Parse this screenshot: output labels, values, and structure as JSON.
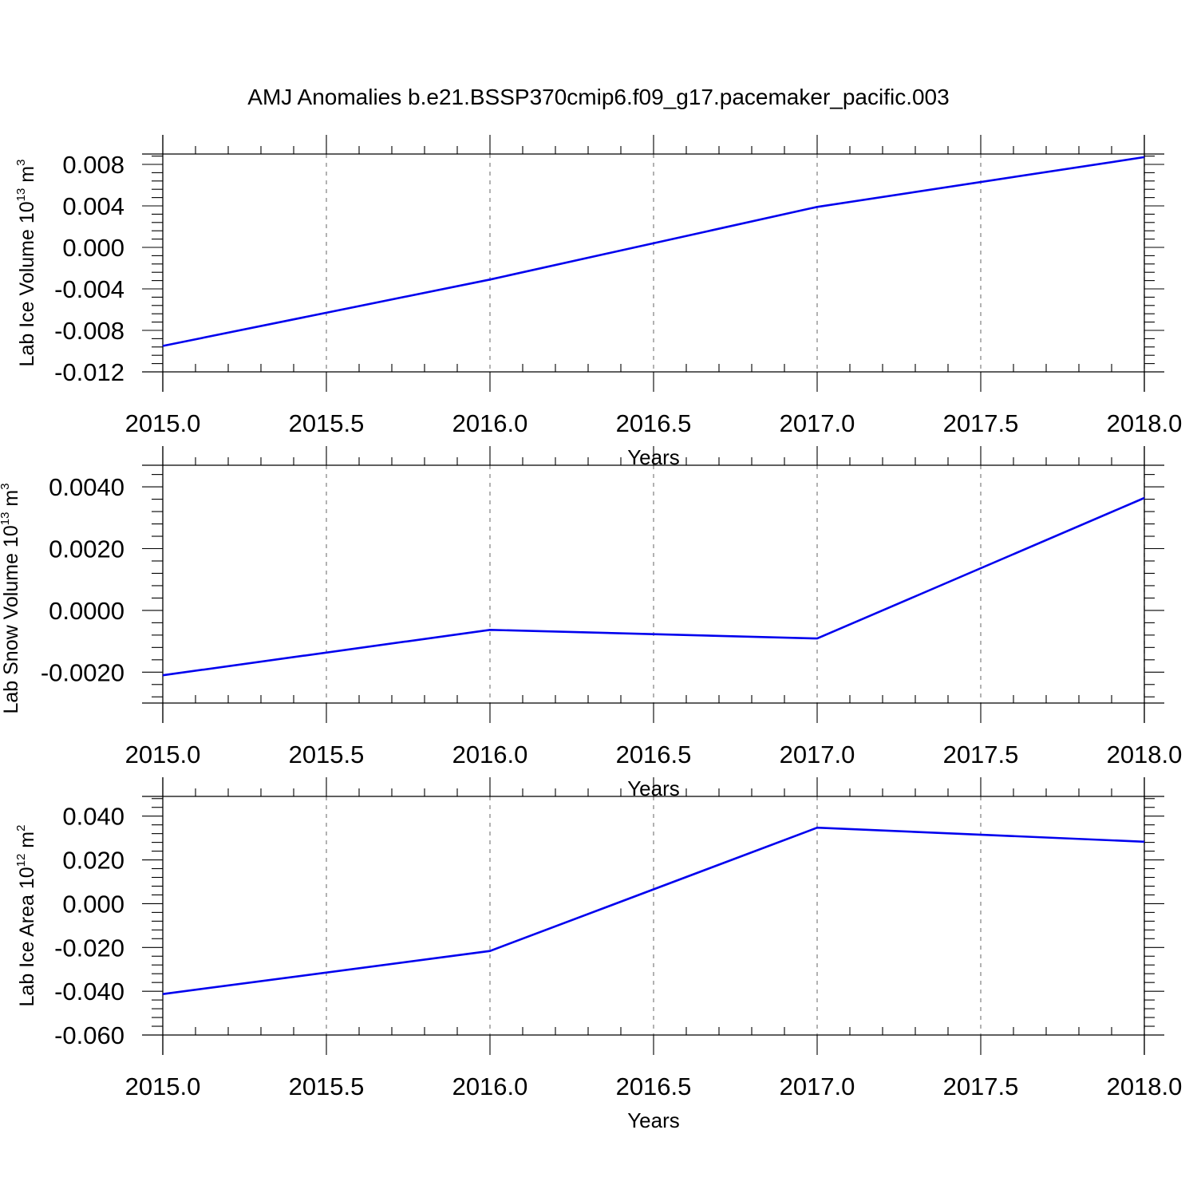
{
  "title": "AMJ Anomalies b.e21.BSSP370cmip6.f09_g17.pacemaker_pacific.003",
  "colors": {
    "series": "#0000ee",
    "grid": "#888888",
    "axis": "#000000"
  },
  "chart_data": [
    {
      "type": "line",
      "ylabel": {
        "main": "Lab Ice Volume 10",
        "sup": "13",
        "unit": " m",
        "unit_sup": "3"
      },
      "xlabel": "Years",
      "xlim": [
        2015.0,
        2018.0
      ],
      "ylim": [
        -0.012,
        0.009
      ],
      "x_ticks": [
        "2015.0",
        "2015.5",
        "2016.0",
        "2016.5",
        "2017.0",
        "2017.5",
        "2018.0"
      ],
      "y_ticks": [
        "0.008",
        "0.004",
        "0.000",
        "-0.004",
        "-0.008",
        "-0.012"
      ],
      "grid": "vertical dashed",
      "series": [
        {
          "x": [
            2015,
            2016,
            2017,
            2018
          ],
          "values": [
            -0.0095,
            -0.0031,
            0.0039,
            0.0087
          ]
        }
      ]
    },
    {
      "type": "line",
      "ylabel": {
        "main": "Lab Snow Volume 10",
        "sup": "13",
        "unit": " m",
        "unit_sup": "3"
      },
      "xlabel": "Years",
      "xlim": [
        2015.0,
        2018.0
      ],
      "ylim": [
        -0.003,
        0.004
      ],
      "x_ticks": [
        "2015.0",
        "2015.5",
        "2016.0",
        "2016.5",
        "2017.0",
        "2017.5",
        "2018.0"
      ],
      "y_ticks": [
        "0.0040",
        "0.0020",
        "0.0000",
        "-0.0020"
      ],
      "grid": "vertical dashed",
      "series": [
        {
          "x": [
            2015,
            2016,
            2017,
            2018
          ],
          "values": [
            -0.0021,
            -0.00063,
            -0.00091,
            0.00364
          ]
        }
      ]
    },
    {
      "type": "line",
      "ylabel": {
        "main": "Lab Ice Area 10",
        "sup": "12",
        "unit": " m",
        "unit_sup": "2"
      },
      "xlabel": "Years",
      "xlim": [
        2015.0,
        2018.0
      ],
      "ylim": [
        -0.06,
        0.04
      ],
      "x_ticks": [
        "2015.0",
        "2015.5",
        "2016.0",
        "2016.5",
        "2017.0",
        "2017.5",
        "2018.0"
      ],
      "y_ticks": [
        "0.040",
        "0.020",
        "0.000",
        "-0.020",
        "-0.040",
        "-0.060"
      ],
      "grid": "vertical dashed",
      "series": [
        {
          "x": [
            2015,
            2016,
            2017,
            2018
          ],
          "values": [
            -0.0413,
            -0.0216,
            0.0347,
            0.0283
          ]
        }
      ]
    }
  ]
}
